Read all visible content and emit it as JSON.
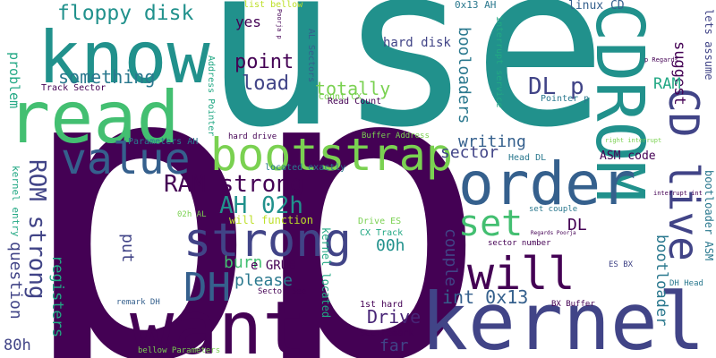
{
  "words": [
    {
      "text": "p",
      "color": "#440154"
    },
    {
      "text": "p",
      "color": "#440154"
    },
    {
      "text": "use",
      "color": "#21918c"
    },
    {
      "text": "know",
      "color": "#21918c"
    },
    {
      "text": "read",
      "color": "#43bf71"
    },
    {
      "text": "want",
      "color": "#440154"
    },
    {
      "text": "kernel",
      "color": "#414487"
    },
    {
      "text": "CDROM",
      "color": "#21918c"
    },
    {
      "text": "order",
      "color": "#35608d"
    },
    {
      "text": "bootstrap",
      "color": "#7ad151"
    },
    {
      "text": "strong",
      "color": "#414487"
    },
    {
      "text": "value",
      "color": "#35608d"
    },
    {
      "text": "will",
      "color": "#440154"
    },
    {
      "text": "CD live",
      "color": "#414487"
    },
    {
      "text": "DH",
      "color": "#35608d"
    },
    {
      "text": "set",
      "color": "#43bf71"
    },
    {
      "text": "floppy disk",
      "color": "#21918c"
    },
    {
      "text": "RAM strong",
      "color": "#440154"
    },
    {
      "text": "AH 02h",
      "color": "#21918c"
    },
    {
      "text": "ROM strong",
      "color": "#414487"
    },
    {
      "text": "something",
      "color": "#2a788e"
    },
    {
      "text": "DL p",
      "color": "#414487"
    },
    {
      "text": "point",
      "color": "#440154"
    },
    {
      "text": "load",
      "color": "#414487"
    },
    {
      "text": "totally",
      "color": "#7ad151"
    },
    {
      "text": "writing",
      "color": "#35608d"
    },
    {
      "text": "sector",
      "color": "#414487"
    },
    {
      "text": "int 0x13",
      "color": "#35608d"
    },
    {
      "text": "Drive",
      "color": "#482576"
    },
    {
      "text": "00h",
      "color": "#21918c"
    },
    {
      "text": "please",
      "color": "#2a788e"
    },
    {
      "text": "burn",
      "color": "#43bf71"
    },
    {
      "text": "e GRUB",
      "color": "#440154"
    },
    {
      "text": "put",
      "color": "#414487"
    },
    {
      "text": "question",
      "color": "#414487"
    },
    {
      "text": "registers",
      "color": "#22a884"
    },
    {
      "text": "80h",
      "color": "#414487"
    },
    {
      "text": "far",
      "color": "#414487"
    },
    {
      "text": "DL",
      "color": "#440154"
    },
    {
      "text": "couple",
      "color": "#414487"
    },
    {
      "text": "bootloader",
      "color": "#2a788e"
    },
    {
      "text": "booloaders",
      "color": "#2a788e"
    },
    {
      "text": "suggest",
      "color": "#440154"
    },
    {
      "text": "RAM",
      "color": "#22a884"
    },
    {
      "text": "ASM code",
      "color": "#440154"
    },
    {
      "text": "hard disk",
      "color": "#414487"
    },
    {
      "text": "yes",
      "color": "#440154"
    },
    {
      "text": "problem",
      "color": "#22a884"
    },
    {
      "text": "linux CD",
      "color": "#35608d"
    },
    {
      "text": "0x13 AH",
      "color": "#2a788e"
    },
    {
      "text": "lets assume",
      "color": "#414487"
    },
    {
      "text": "kernel entry",
      "color": "#22a884"
    },
    {
      "text": "kernel located",
      "color": "#22a884"
    },
    {
      "text": "bootloader ASM",
      "color": "#2a788e"
    },
    {
      "text": "list bellow",
      "color": "#bddf26"
    },
    {
      "text": "Poorja p",
      "color": "#440154"
    },
    {
      "text": "Address Pointer",
      "color": "#22a884"
    },
    {
      "text": "AL Sectors",
      "color": "#35608d"
    },
    {
      "text": "interrupt service",
      "color": "#22a884"
    },
    {
      "text": "p Regards",
      "color": "#440154"
    },
    {
      "text": "Track Sector",
      "color": "#440154"
    },
    {
      "text": "Count CX",
      "color": "#7ad151"
    },
    {
      "text": "Read Count",
      "color": "#440154"
    },
    {
      "text": "Pointer p",
      "color": "#2a788e"
    },
    {
      "text": "Parameters AH",
      "color": "#2a788e"
    },
    {
      "text": "hard drive",
      "color": "#440154"
    },
    {
      "text": "Buffer Address",
      "color": "#7ad151"
    },
    {
      "text": "right interrupt",
      "color": "#7ad151"
    },
    {
      "text": "Head DL",
      "color": "#2a788e"
    },
    {
      "text": "located exactly",
      "color": "#2a788e"
    },
    {
      "text": "interrupt int",
      "color": "#440154"
    },
    {
      "text": "02h AL",
      "color": "#7ad151"
    },
    {
      "text": "will function",
      "color": "#bddf26"
    },
    {
      "text": "Drive ES",
      "color": "#7ad151"
    },
    {
      "text": "set couple",
      "color": "#2a788e"
    },
    {
      "text": "CX Track",
      "color": "#22a884"
    },
    {
      "text": "Regards Poorja",
      "color": "#440154"
    },
    {
      "text": "sector number",
      "color": "#440154"
    },
    {
      "text": "ES BX",
      "color": "#414487"
    },
    {
      "text": "Sector See",
      "color": "#440154"
    },
    {
      "text": "DH Head",
      "color": "#2a788e"
    },
    {
      "text": "remark DH",
      "color": "#35608d"
    },
    {
      "text": "1st hard",
      "color": "#440154"
    },
    {
      "text": "BX Buffer",
      "color": "#440154"
    },
    {
      "text": "See remark",
      "color": "#440154"
    },
    {
      "text": "bellow Parameters",
      "color": "#7ad151"
    }
  ]
}
